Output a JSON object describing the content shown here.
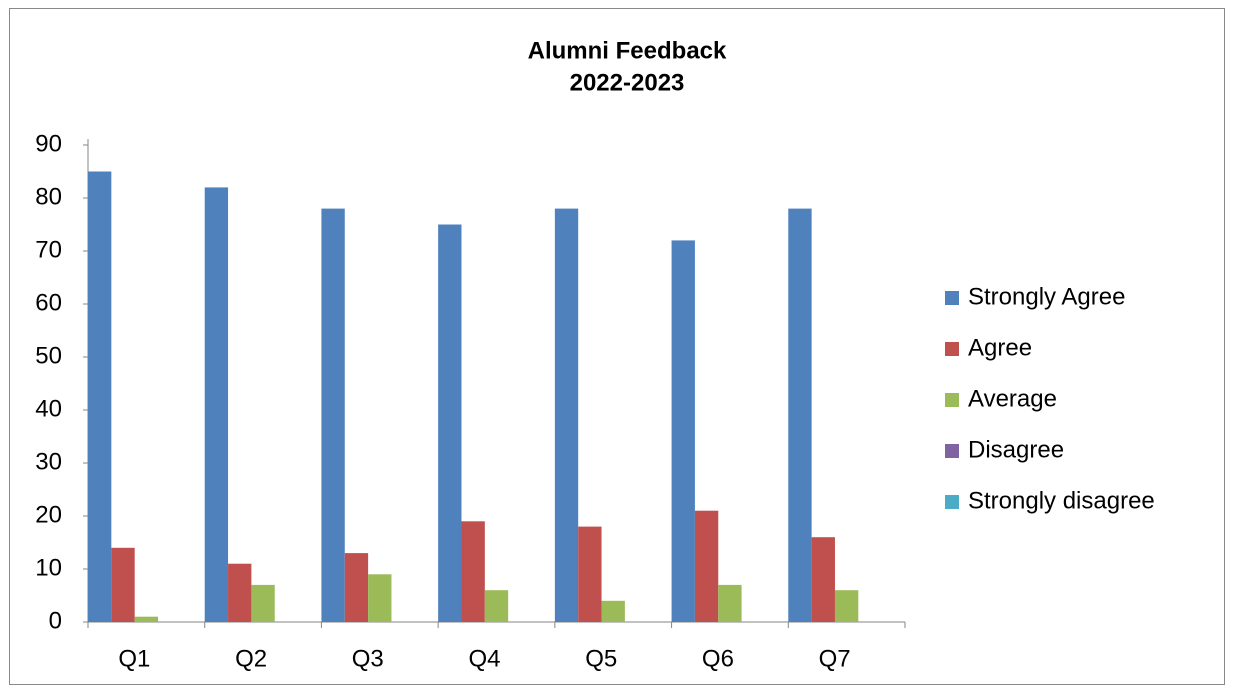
{
  "chart_data": {
    "type": "bar",
    "title": "Alumni Feedback",
    "subtitle": "2022-2023",
    "categories": [
      "Q1",
      "Q2",
      "Q3",
      "Q4",
      "Q5",
      "Q6",
      "Q7"
    ],
    "series": [
      {
        "name": "Strongly Agree",
        "color": "#4f81bd",
        "values": [
          85,
          82,
          78,
          75,
          78,
          72,
          78
        ]
      },
      {
        "name": "Agree",
        "color": "#c0504d",
        "values": [
          14,
          11,
          13,
          19,
          18,
          21,
          16
        ]
      },
      {
        "name": "Average",
        "color": "#9bbb59",
        "values": [
          1,
          7,
          9,
          6,
          4,
          7,
          6
        ]
      },
      {
        "name": "Disagree",
        "color": "#8064a2",
        "values": [
          0,
          0,
          0,
          0,
          0,
          0,
          0
        ]
      },
      {
        "name": "Strongly disagree",
        "color": "#4bacc6",
        "values": [
          0,
          0,
          0,
          0,
          0,
          0,
          0
        ]
      }
    ],
    "ylim": [
      0,
      90
    ],
    "yticks": [
      0,
      10,
      20,
      30,
      40,
      50,
      60,
      70,
      80,
      90
    ],
    "grid": false,
    "legend": "right"
  }
}
